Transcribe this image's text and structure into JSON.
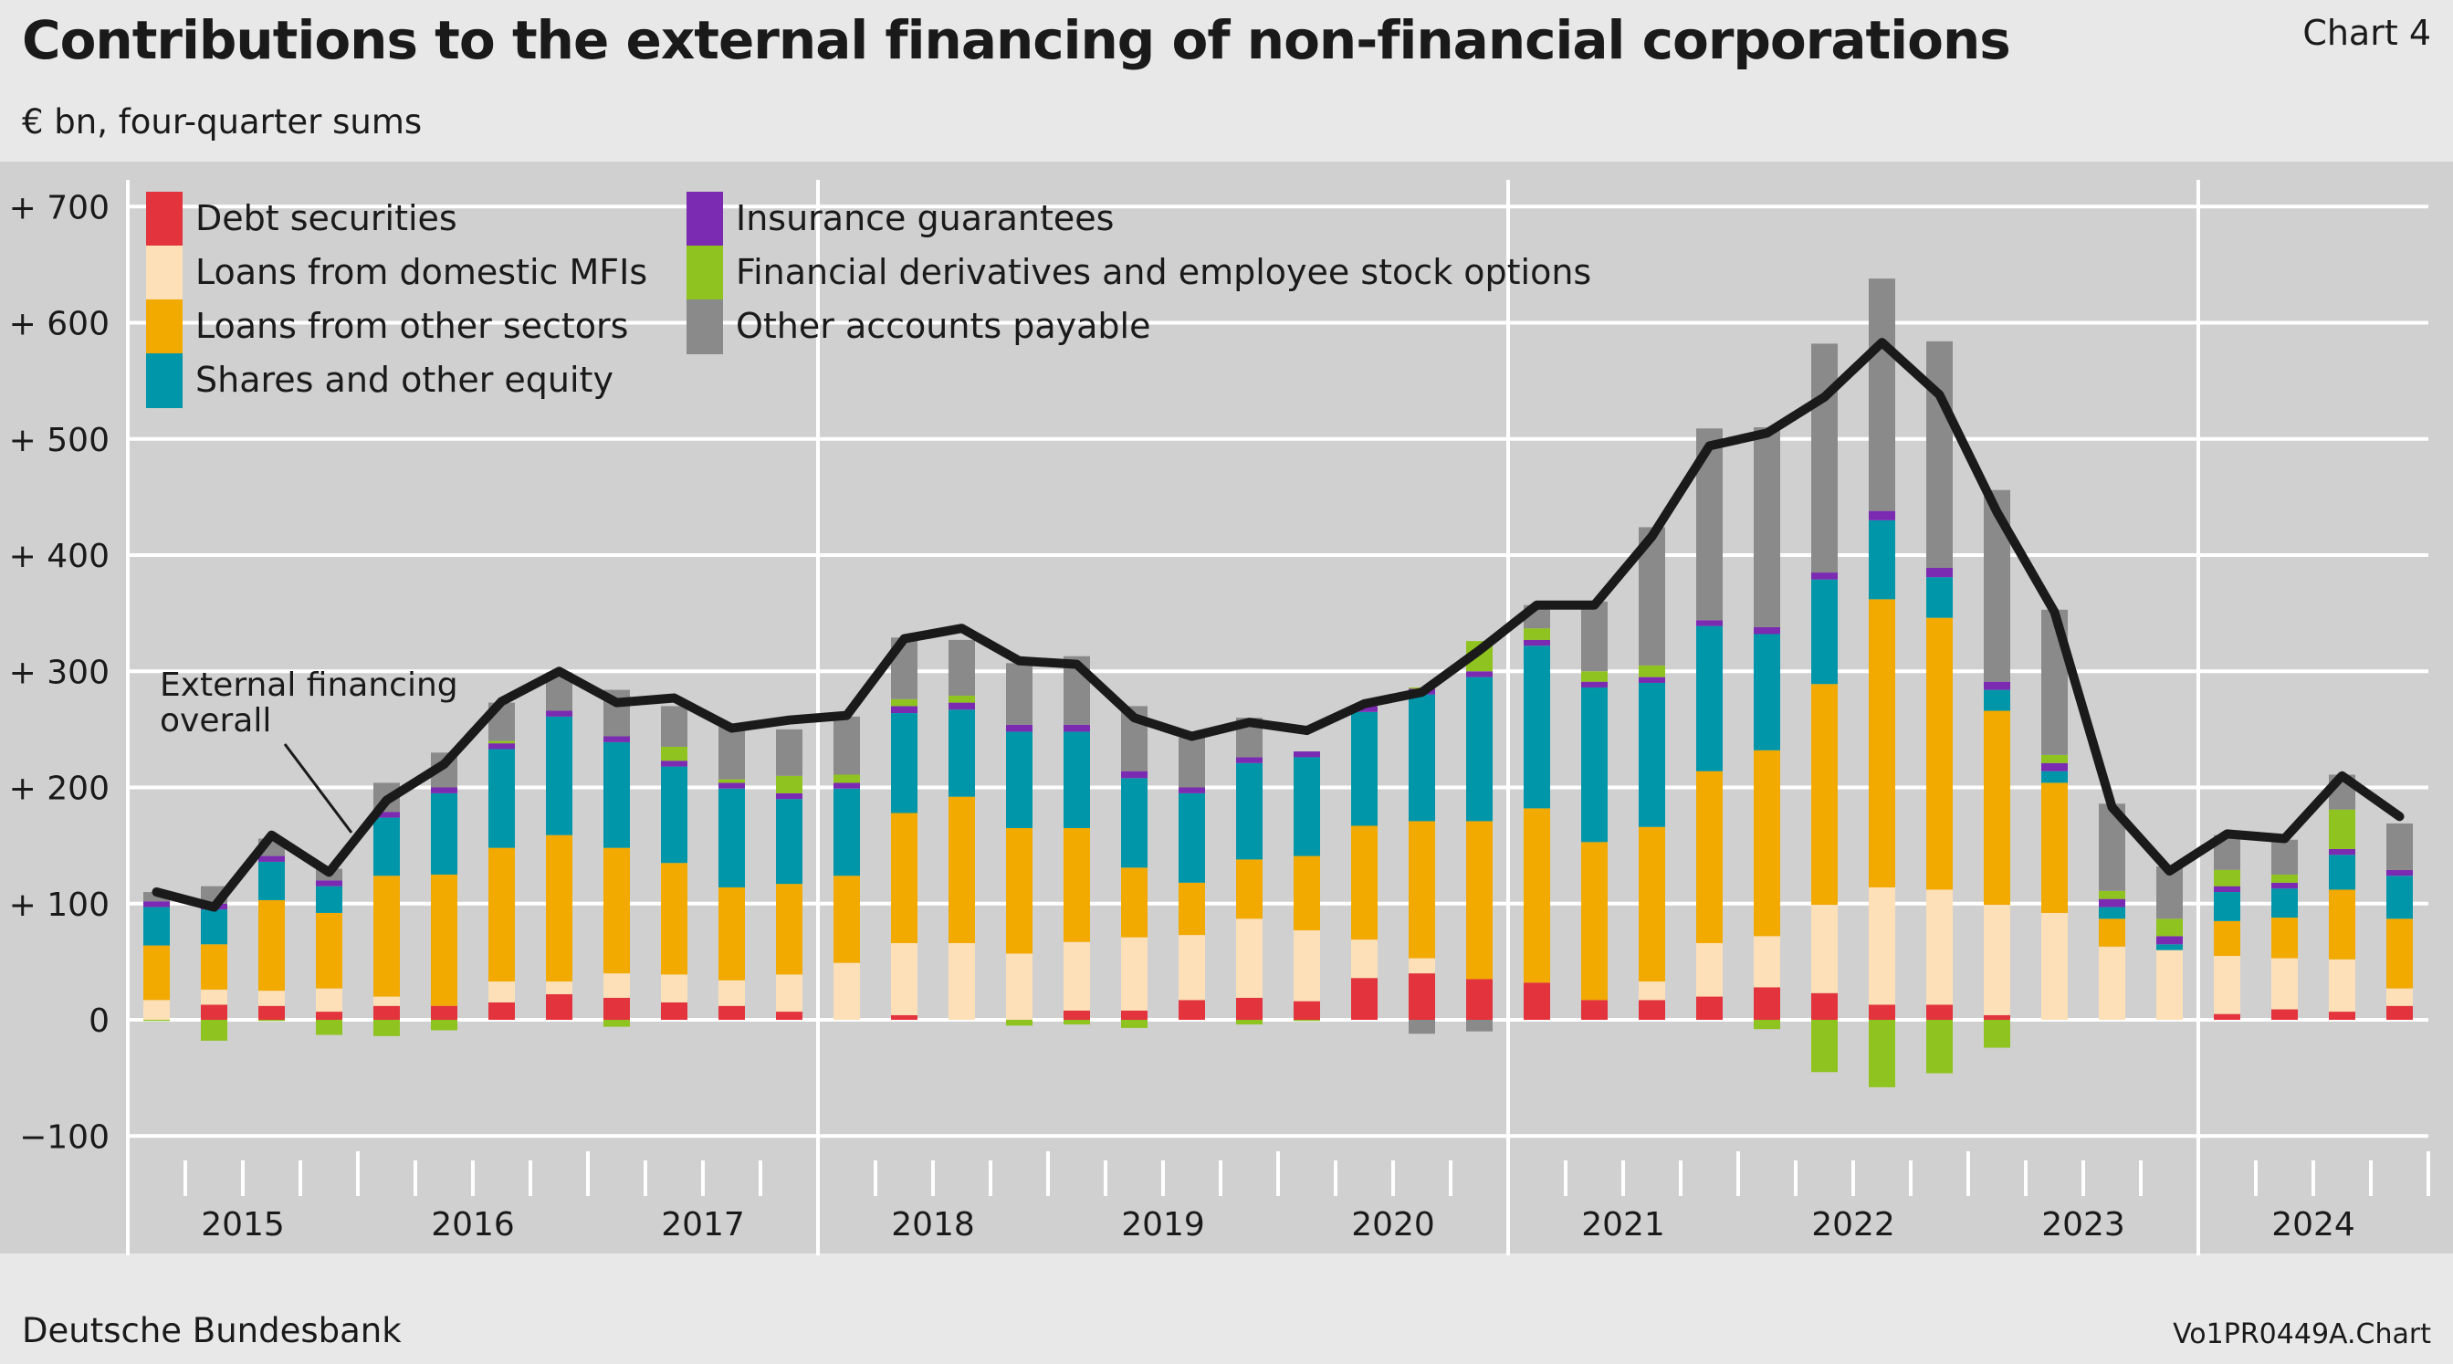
{
  "header": {
    "title": "Contributions to the external financing of non-financial corporations",
    "chart_number": "Chart 4",
    "unit": "€ bn, four-quarter sums"
  },
  "footer": {
    "source": "Deutsche Bundesbank",
    "code": "Vo1PR0449A.Chart"
  },
  "chart_data": {
    "type": "bar",
    "stacked": true,
    "xlabel": "",
    "ylabel": "",
    "ylim": [
      -100,
      700
    ],
    "yticks": [
      -100,
      0,
      100,
      200,
      300,
      400,
      500,
      600,
      700
    ],
    "ytick_labels": [
      "−100",
      "0",
      "+ 100",
      "+ 200",
      "+ 300",
      "+ 400",
      "+ 500",
      "+ 600",
      "+ 700"
    ],
    "grid": true,
    "legend_position": "top-left",
    "years": [
      "2015",
      "2016",
      "2017",
      "2018",
      "2019",
      "2020",
      "2021",
      "2022",
      "2023",
      "2024"
    ],
    "quarters_per_year": 4,
    "series": [
      {
        "name": "Debt securities",
        "color": "#e3333c",
        "values": [
          0,
          13,
          12,
          7,
          12,
          12,
          15,
          22,
          19,
          15,
          12,
          7,
          0,
          4,
          0,
          0,
          8,
          8,
          17,
          19,
          16,
          36,
          40,
          35,
          32,
          17,
          17,
          20,
          28,
          23,
          13,
          13,
          4,
          0,
          0,
          0,
          5,
          9,
          7,
          12
        ]
      },
      {
        "name": "Loans from domestic MFIs",
        "color": "#fde0b8",
        "values": [
          17,
          13,
          13,
          20,
          8,
          0,
          18,
          11,
          21,
          24,
          22,
          32,
          49,
          62,
          66,
          57,
          59,
          63,
          56,
          68,
          61,
          33,
          13,
          0,
          0,
          0,
          16,
          46,
          44,
          76,
          101,
          99,
          95,
          92,
          63,
          60,
          50,
          44,
          45,
          15
        ]
      },
      {
        "name": "Loans from other sectors",
        "color": "#f2a900",
        "values": [
          47,
          39,
          78,
          65,
          104,
          113,
          115,
          126,
          108,
          96,
          80,
          78,
          75,
          112,
          126,
          108,
          98,
          60,
          45,
          51,
          64,
          98,
          118,
          136,
          150,
          136,
          133,
          148,
          160,
          190,
          248,
          234,
          167,
          112,
          24,
          0,
          30,
          35,
          60,
          60
        ]
      },
      {
        "name": "Shares and other equity",
        "color": "#0096a9",
        "values": [
          33,
          30,
          33,
          23,
          50,
          70,
          85,
          102,
          91,
          83,
          85,
          73,
          75,
          86,
          75,
          83,
          83,
          77,
          77,
          83,
          85,
          98,
          109,
          124,
          140,
          133,
          124,
          125,
          100,
          90,
          68,
          35,
          18,
          10,
          10,
          5,
          25,
          25,
          30,
          37
        ]
      },
      {
        "name": "Insurance guarantees",
        "color": "#7b2ab2",
        "values": [
          5,
          5,
          5,
          5,
          5,
          5,
          5,
          5,
          5,
          5,
          5,
          5,
          5,
          6,
          6,
          6,
          6,
          6,
          5,
          5,
          5,
          5,
          5,
          5,
          5,
          5,
          5,
          5,
          6,
          6,
          8,
          8,
          7,
          7,
          7,
          7,
          5,
          5,
          5,
          5
        ]
      },
      {
        "name": "Financial derivatives and employee stock options",
        "color": "#8fc31f",
        "values": [
          -1,
          -18,
          -1,
          -13,
          -14,
          -9,
          2,
          0,
          -6,
          12,
          3,
          15,
          7,
          6,
          6,
          -5,
          -4,
          -7,
          0,
          -4,
          -1,
          0,
          1,
          26,
          10,
          9,
          10,
          0,
          -8,
          -45,
          -58,
          -46,
          -24,
          7,
          7,
          15,
          14,
          7,
          34,
          0
        ]
      },
      {
        "name": "Other accounts payable",
        "color": "#8a8a8a",
        "values": [
          8,
          15,
          15,
          10,
          25,
          30,
          33,
          33,
          40,
          35,
          45,
          40,
          50,
          53,
          48,
          53,
          59,
          56,
          43,
          34,
          0,
          0,
          -12,
          -10,
          20,
          60,
          119,
          165,
          172,
          197,
          200,
          195,
          165,
          125,
          75,
          45,
          30,
          30,
          30,
          40
        ]
      }
    ],
    "line": {
      "name": "External financing overall",
      "color": "#1a1a1a",
      "values": [
        110,
        97,
        159,
        127,
        189,
        220,
        274,
        300,
        273,
        277,
        251,
        258,
        262,
        328,
        337,
        309,
        306,
        260,
        244,
        256,
        249,
        272,
        282,
        318,
        357,
        357,
        416,
        494,
        505,
        536,
        583,
        538,
        437,
        351,
        183,
        128,
        160,
        156,
        210,
        175
      ]
    },
    "annotation": {
      "text_line1": "External financing",
      "text_line2": "overall"
    }
  }
}
